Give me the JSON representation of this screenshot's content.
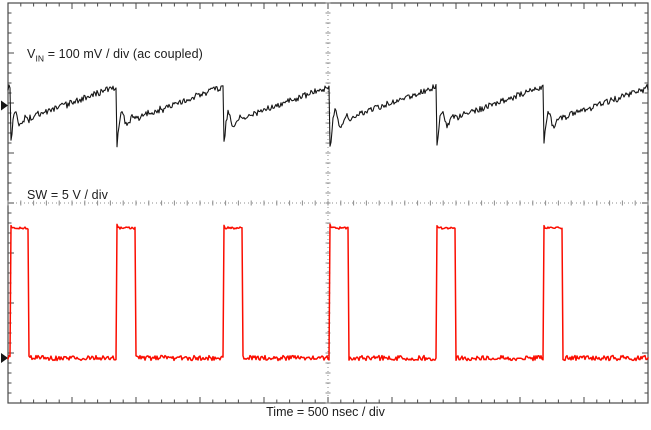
{
  "scope": {
    "labels": {
      "ch1_prefix": "V",
      "ch1_sub": "IN",
      "ch1_rest": " = 100 mV / div (ac coupled)",
      "ch2": "SW = 5 V / div",
      "time": "Time = 500 nsec / div"
    },
    "colors": {
      "background": "#ffffff",
      "ch1_trace": "#161616",
      "ch2_trace": "#fb0d00",
      "graticule": "#4a4a4a",
      "center_line": "#8c8c8c",
      "text": "#1c1c1c"
    }
  },
  "chart_data": {
    "type": "line",
    "title": "Oscilloscope capture: VIN ripple and SW node switching waveforms",
    "xlabel": "Time = 500 nsec / div",
    "time_per_div_ns": 500,
    "divisions_x": 10,
    "divisions_y": 8,
    "switching_period_ns": 833,
    "switching_frequency_MHz": 1.2,
    "series": [
      {
        "name": "VIN",
        "scale_label": "VIN = 100 mV / div (ac coupled)",
        "volts_per_div": 0.1,
        "coupling": "ac",
        "shape": "rising sawtooth ripple with damped ringing burst at each switching edge",
        "period_ns": 833,
        "first_edge_ns": 16,
        "ripple_pp_div": 0.76,
        "ring_amp_div": 0.45,
        "ring_period_ns": 86,
        "ring_decay_ns": 55,
        "center_div_from_top": 2.05,
        "noise_div": 0.06
      },
      {
        "name": "SW",
        "scale_label": "SW = 5 V / div",
        "volts_per_div": 5,
        "shape": "rectangular pulse train",
        "period_ns": 833,
        "pulse_width_ns": 148,
        "first_edge_ns": 16,
        "duty_cycle_pct": 17.8,
        "amplitude_div": 2.6,
        "base_div_from_top": 7.1,
        "noise_div": 0.05
      }
    ]
  }
}
